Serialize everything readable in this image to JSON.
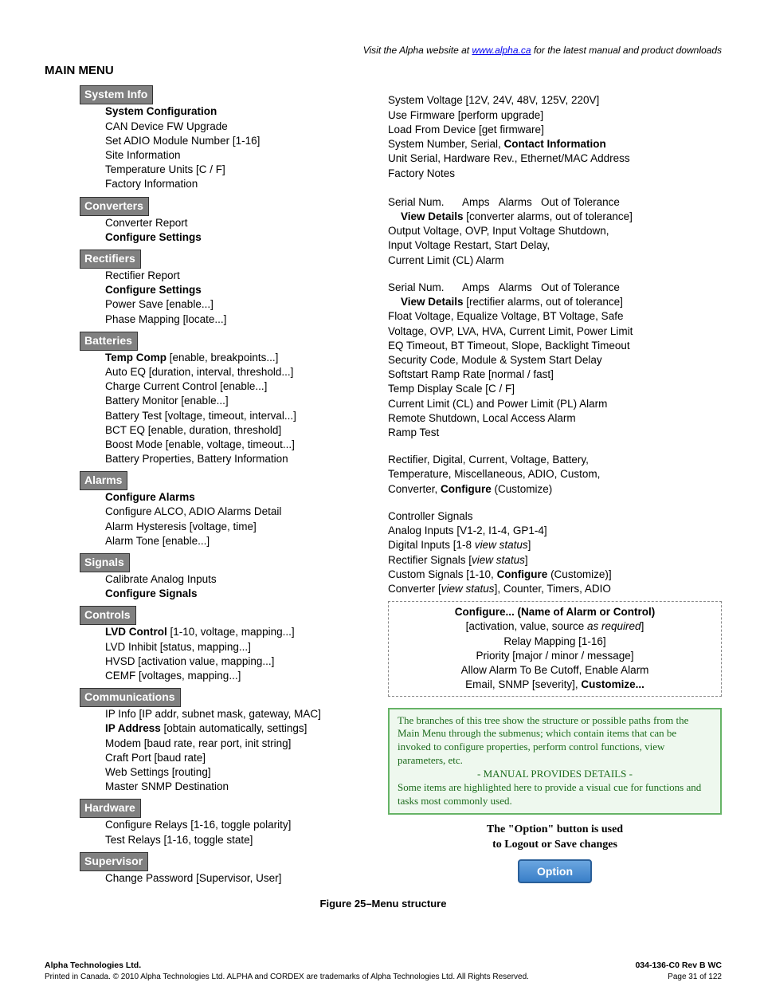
{
  "header": {
    "visit_prefix": "Visit the Alpha website at ",
    "link": "www.alpha.ca",
    "visit_suffix": " for the latest manual and product downloads"
  },
  "main_menu_label": "MAIN MENU",
  "sections": {
    "system_info": {
      "title": "System Info",
      "items": [
        "<b>System Configuration</b>",
        "CAN Device FW Upgrade",
        "Set ADIO Module Number [1-16]",
        "Site Information",
        "Temperature Units [C / F]",
        "Factory Information"
      ]
    },
    "converters": {
      "title": "Converters",
      "items": [
        "Converter Report",
        "<b>Configure Settings</b>"
      ]
    },
    "rectifiers": {
      "title": "Rectifiers",
      "items": [
        "Rectifier Report",
        "<b>Configure Settings</b>",
        "Power Save [enable...]",
        "Phase Mapping [locate...]"
      ]
    },
    "batteries": {
      "title": "Batteries",
      "items": [
        "<b>Temp Comp</b> [enable, breakpoints...]",
        "Auto EQ [duration, interval, threshold...]",
        "Charge Current Control [enable...]",
        "Battery Monitor [enable...]",
        "Battery Test [voltage, timeout, interval...]",
        "BCT EQ [enable, duration, threshold]",
        "Boost Mode [enable, voltage, timeout...]",
        "Battery Properties, Battery Information"
      ]
    },
    "alarms": {
      "title": "Alarms",
      "items": [
        "<b>Configure Alarms</b>",
        "Configure ALCO, ADIO Alarms Detail",
        "Alarm Hysteresis [voltage, time]",
        "Alarm Tone [enable...]"
      ]
    },
    "signals": {
      "title": "Signals",
      "items": [
        "Calibrate Analog Inputs",
        "<b>Configure Signals</b>"
      ]
    },
    "controls": {
      "title": "Controls",
      "items": [
        "<b>LVD Control</b> [1-10, voltage, mapping...]",
        "LVD Inhibit [status, mapping...]",
        "HVSD [activation value, mapping...]",
        "CEMF [voltages, mapping...]"
      ]
    },
    "communications": {
      "title": "Communications",
      "items": [
        "IP Info [IP addr, subnet mask, gateway, MAC]",
        "<b>IP Address</b> [obtain automatically, settings]",
        "Modem [baud rate, rear port, init string]",
        "Craft Port [baud rate]",
        "Web Settings [routing]",
        "Master SNMP Destination"
      ]
    },
    "hardware": {
      "title": "Hardware",
      "items": [
        "Configure Relays [1-16, toggle polarity]",
        "Test Relays [1-16, toggle state]"
      ]
    },
    "supervisor": {
      "title": "Supervisor",
      "items": [
        "Change Password [Supervisor, User]"
      ]
    }
  },
  "right": {
    "block1": [
      "System Voltage [12V, 24V, 48V, 125V, 220V]",
      "Use Firmware [perform upgrade]",
      "Load From Device [get firmware]",
      "System Number, Serial, <b>Contact Information</b>",
      "Unit Serial, Hardware Rev., Ethernet/MAC Address",
      "Factory Notes"
    ],
    "block2_header": "Serial Num.&nbsp;&nbsp;&nbsp;&nbsp;&nbsp;&nbsp;Amps&nbsp;&nbsp;&nbsp;Alarms&nbsp;&nbsp;&nbsp;Out of Tolerance",
    "block2_detail": "<b>View Details</b> [converter alarms, out of tolerance]",
    "block2_rest": [
      "Output Voltage, OVP, Input Voltage Shutdown,",
      "Input Voltage Restart, Start Delay,",
      "Current Limit (CL) Alarm"
    ],
    "block3_header": "Serial Num.&nbsp;&nbsp;&nbsp;&nbsp;&nbsp;&nbsp;Amps&nbsp;&nbsp;&nbsp;Alarms&nbsp;&nbsp;&nbsp;Out of Tolerance",
    "block3_detail": "<b>View Details</b> [rectifier alarms, out of tolerance]",
    "block3_rest": [
      "Float Voltage, Equalize Voltage, BT Voltage, Safe",
      "Voltage, OVP, LVA, HVA, Current Limit, Power Limit",
      "EQ Timeout, BT Timeout, Slope, Backlight Timeout",
      "Security Code, Module & System Start Delay",
      "Softstart Ramp Rate [normal / fast]",
      "Temp Display Scale [C / F]",
      "Current Limit (CL) and Power Limit (PL) Alarm",
      "Remote Shutdown, Local Access Alarm",
      "Ramp Test"
    ],
    "block4": [
      "Rectifier, Digital, Current, Voltage, Battery,",
      "Temperature, Miscellaneous, ADIO, Custom,",
      "Converter, <b>Configure</b> (Customize)"
    ],
    "block5": [
      "Controller Signals",
      "Analog Inputs [V1-2, I1-4, GP1-4]",
      "Digital Inputs [1-8 <i>view status</i>]",
      "Rectifier Signals [<i>view status</i>]",
      "Custom Signals [1-10, <b>Configure</b> (Customize)]",
      "Converter [<i>view status</i>], Counter, Timers, ADIO"
    ],
    "configbox": [
      "<b>Configure... (Name of Alarm or Control)</b>",
      "[activation, value, source <i>as required</i>]",
      "Relay Mapping [1-16]",
      "Priority [major / minor / message]",
      "Allow Alarm To Be Cutoff, Enable Alarm",
      "Email, SNMP [severity], <b>Customize...</b>"
    ],
    "notebox": {
      "l1": "The branches of this tree show the structure or possible paths from the Main Menu through the submenus; which contain items that can be invoked to configure properties, perform control functions, view parameters, etc.",
      "l2": "- MANUAL PROVIDES DETAILS -",
      "l3": "Some items are highlighted here to provide a visual cue for functions and tasks most commonly used."
    },
    "option_text1": "The \"Option\" button is used",
    "option_text2": "to Logout or Save changes",
    "option_btn": "Option"
  },
  "caption": "Figure 25–Menu structure",
  "footer": {
    "left_bold": "Alpha Technologies Ltd.",
    "left": "Printed in Canada.  © 2010 Alpha Technologies Ltd.  ALPHA and CORDEX are trademarks of Alpha Technologies Ltd.  All Rights Reserved.",
    "right_bold": "034-136-C0  Rev B  WC",
    "right": "Page 31 of 122"
  }
}
